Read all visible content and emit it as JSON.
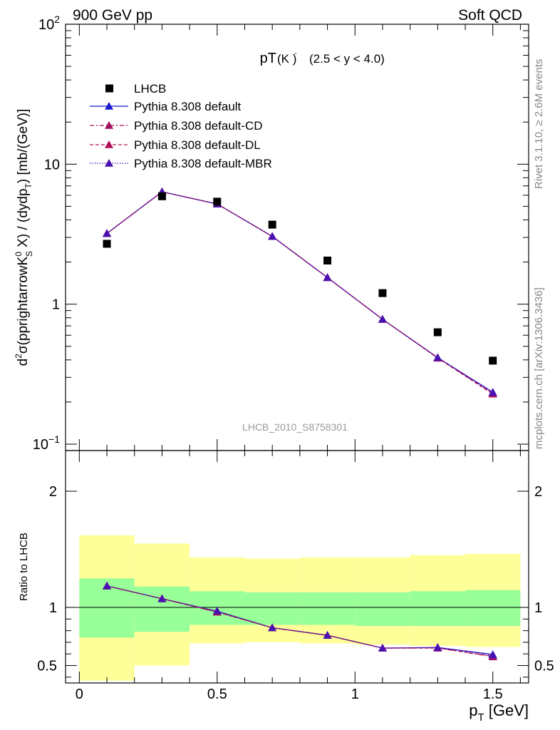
{
  "header": {
    "left": "900 GeV pp",
    "right": "Soft QCD"
  },
  "side_labels": {
    "rivet": "Rivet 3.1.10, ≥ 2.6M events",
    "mcplots": "mcplots.cern.ch [arXiv:1306.3436]"
  },
  "watermark": "LHCB_2010_S8758301",
  "colors": {
    "data": "#000000",
    "default": "#1a1acc",
    "cd": "#a0105a",
    "dl": "#b0105a",
    "mbr": "#4a10b0",
    "band_inner": "#99ff99",
    "band_outer": "#ffff99"
  },
  "chart_data": [
    {
      "type": "scatter",
      "panel": "main",
      "title_main": "pT",
      "title_particle": "(K )",
      "title_particle_sup": "-",
      "title_range": "(2.5 < y < 4.0)",
      "ylabel": "d²σ(pprightarrowK⁰S X) / (dydpT) [mb/(GeV)]",
      "yscale": "log",
      "ylim": [
        0.09,
        100
      ],
      "xlim": [
        -0.05,
        1.63
      ],
      "y_ticks": [
        {
          "v": 0.1,
          "base": "10",
          "exp": "−1"
        },
        {
          "v": 1,
          "label": "1"
        },
        {
          "v": 10,
          "label": "10"
        },
        {
          "v": 100,
          "base": "10",
          "exp": "2"
        }
      ],
      "legend_position": "top-left",
      "x": [
        0.1,
        0.3,
        0.5,
        0.7,
        0.9,
        1.1,
        1.3,
        1.5
      ],
      "series": [
        {
          "name": "LHCB",
          "marker": "square",
          "values": [
            2.7,
            5.9,
            5.4,
            3.7,
            2.05,
            1.2,
            0.63,
            0.395
          ]
        },
        {
          "name": "Pythia 8.308 default",
          "marker": "triangle",
          "line": "solid",
          "values": [
            3.2,
            6.35,
            5.2,
            3.05,
            1.55,
            0.78,
            0.415,
            0.235
          ]
        },
        {
          "name": "Pythia 8.308 default-CD",
          "marker": "triangle",
          "line": "dashdot",
          "values": [
            3.2,
            6.35,
            5.2,
            3.05,
            1.55,
            0.78,
            0.415,
            0.23
          ]
        },
        {
          "name": "Pythia 8.308 default-DL",
          "marker": "triangle",
          "line": "dashed",
          "values": [
            3.2,
            6.35,
            5.2,
            3.05,
            1.55,
            0.78,
            0.412,
            0.228
          ]
        },
        {
          "name": "Pythia 8.308 default-MBR",
          "marker": "triangle",
          "line": "dotted",
          "values": [
            3.2,
            6.35,
            5.2,
            3.05,
            1.55,
            0.78,
            0.415,
            0.234
          ]
        }
      ]
    },
    {
      "type": "line",
      "panel": "ratio",
      "ylabel": "Ratio to LHCB",
      "xlabel_main": "p",
      "xlabel_sub": "T",
      "xlabel_unit": " [GeV]",
      "ylim": [
        0.35,
        2.35
      ],
      "xlim": [
        -0.05,
        1.63
      ],
      "y_ticks": [
        0.5,
        1,
        2
      ],
      "x_ticks": [
        {
          "v": 0,
          "label": "0"
        },
        {
          "v": 0.5,
          "label": "0.5"
        },
        {
          "v": 1,
          "label": "1"
        },
        {
          "v": 1.5,
          "label": "1.5"
        }
      ],
      "bands": {
        "bins": [
          [
            0,
            0.2
          ],
          [
            0.2,
            0.4
          ],
          [
            0.4,
            0.6
          ],
          [
            0.6,
            0.8
          ],
          [
            0.8,
            1.0
          ],
          [
            1.0,
            1.2
          ],
          [
            1.2,
            1.4
          ],
          [
            1.4,
            1.6
          ]
        ],
        "inner": [
          [
            0.74,
            1.25
          ],
          [
            0.79,
            1.18
          ],
          [
            0.85,
            1.14
          ],
          [
            0.85,
            1.13
          ],
          [
            0.85,
            1.13
          ],
          [
            0.84,
            1.13
          ],
          [
            0.84,
            1.14
          ],
          [
            0.84,
            1.15
          ]
        ],
        "outer": [
          [
            0.37,
            1.62
          ],
          [
            0.5,
            1.55
          ],
          [
            0.69,
            1.43
          ],
          [
            0.7,
            1.42
          ],
          [
            0.69,
            1.43
          ],
          [
            0.68,
            1.43
          ],
          [
            0.67,
            1.45
          ],
          [
            0.66,
            1.46
          ]
        ]
      },
      "x": [
        0.1,
        0.3,
        0.5,
        0.7,
        0.9,
        1.1,
        1.3,
        1.5
      ],
      "series": [
        {
          "name": "Pythia 8.308 default",
          "values": [
            1.185,
            1.075,
            0.965,
            0.825,
            0.76,
            0.65,
            0.655,
            0.595
          ]
        },
        {
          "name": "Pythia 8.308 default-CD",
          "values": [
            1.185,
            1.075,
            0.96,
            0.825,
            0.76,
            0.65,
            0.652,
            0.575
          ]
        },
        {
          "name": "Pythia 8.308 default-DL",
          "values": [
            1.185,
            1.075,
            0.96,
            0.825,
            0.76,
            0.65,
            0.65,
            0.58
          ]
        },
        {
          "name": "Pythia 8.308 default-MBR",
          "values": [
            1.185,
            1.075,
            0.97,
            0.825,
            0.76,
            0.65,
            0.655,
            0.59
          ]
        }
      ]
    }
  ]
}
